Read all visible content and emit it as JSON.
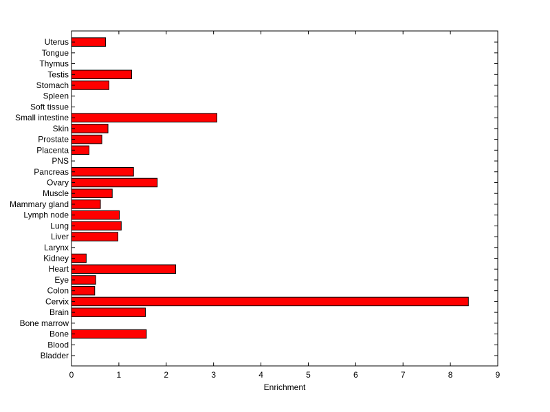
{
  "chart_data": {
    "type": "bar",
    "orientation": "horizontal",
    "title": "",
    "xlabel": "Enrichment",
    "ylabel": "",
    "xlim": [
      0,
      9
    ],
    "xticks": [
      0,
      1,
      2,
      3,
      4,
      5,
      6,
      7,
      8,
      9
    ],
    "grid": false,
    "bar_color": "#ff0000",
    "edge_color": "#000000",
    "categories": [
      "Bladder",
      "Blood",
      "Bone",
      "Bone marrow",
      "Brain",
      "Cervix",
      "Colon",
      "Eye",
      "Heart",
      "Kidney",
      "Larynx",
      "Liver",
      "Lung",
      "Lymph node",
      "Mammary gland",
      "Muscle",
      "Ovary",
      "Pancreas",
      "PNS",
      "Placenta",
      "Prostate",
      "Skin",
      "Small intestine",
      "Soft tissue",
      "Spleen",
      "Stomach",
      "Testis",
      "Thymus",
      "Tongue",
      "Uterus"
    ],
    "values": [
      0,
      0,
      1.58,
      0,
      1.56,
      8.38,
      0.49,
      0.51,
      2.2,
      0.31,
      0,
      0.98,
      1.05,
      1.01,
      0.61,
      0.86,
      1.81,
      1.31,
      0,
      0.37,
      0.64,
      0.77,
      3.07,
      0,
      0,
      0.79,
      1.27,
      0,
      0,
      0.72
    ]
  }
}
